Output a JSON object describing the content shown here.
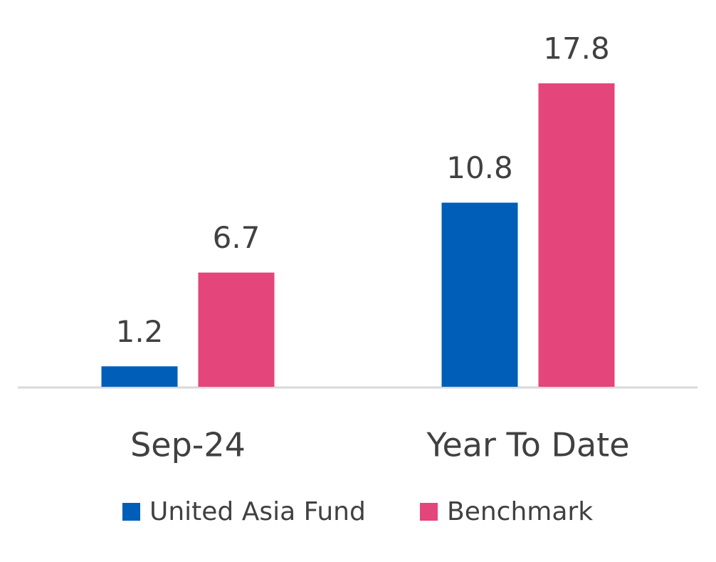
{
  "chart_data": {
    "type": "bar",
    "categories": [
      "Sep-24",
      "Year To Date"
    ],
    "series": [
      {
        "name": "United Asia Fund",
        "color": "#005eb8",
        "values": [
          1.2,
          10.8
        ]
      },
      {
        "name": "Benchmark",
        "color": "#e4457a",
        "values": [
          6.7,
          17.8
        ]
      }
    ],
    "legend": "bottom"
  }
}
